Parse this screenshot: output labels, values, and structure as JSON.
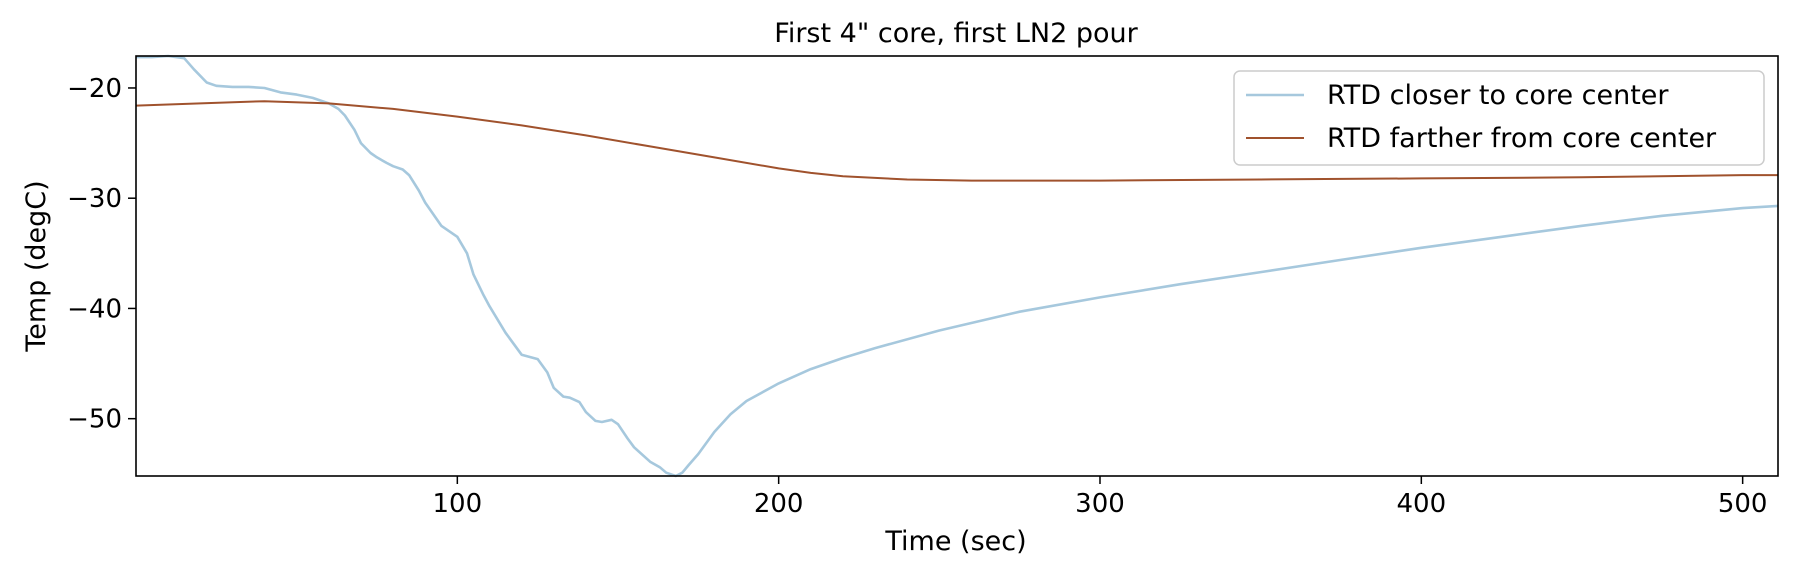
{
  "chart_data": {
    "type": "line",
    "title": "First 4\" core, first LN2 pour",
    "xlabel": "Time (sec)",
    "ylabel": "Temp (degC)",
    "xlim": [
      0,
      511
    ],
    "ylim": [
      -55.2,
      -17.1
    ],
    "xticks": [
      100,
      200,
      300,
      400,
      500
    ],
    "yticks": [
      -20,
      -30,
      -40,
      -50
    ],
    "ytick_labels": [
      "−20",
      "−30",
      "−40",
      "−50"
    ],
    "grid": false,
    "legend_position": "top-right",
    "series": [
      {
        "name": "RTD closer to core center",
        "color": "#a6c8dd",
        "x": [
          0,
          5,
          10,
          15,
          18,
          22,
          25,
          30,
          35,
          40,
          45,
          50,
          55,
          60,
          63,
          65,
          68,
          70,
          73,
          75,
          78,
          80,
          83,
          85,
          88,
          90,
          95,
          100,
          103,
          105,
          108,
          110,
          115,
          120,
          125,
          128,
          130,
          133,
          135,
          138,
          140,
          143,
          145,
          148,
          150,
          153,
          155,
          160,
          163,
          165,
          168,
          170,
          172,
          175,
          180,
          185,
          190,
          200,
          210,
          220,
          230,
          250,
          275,
          300,
          325,
          350,
          375,
          400,
          425,
          450,
          475,
          500,
          511
        ],
        "y": [
          -17.2,
          -17.2,
          -17.1,
          -17.3,
          -18.3,
          -19.5,
          -19.8,
          -19.9,
          -19.9,
          -20.0,
          -20.4,
          -20.6,
          -20.9,
          -21.4,
          -21.9,
          -22.5,
          -23.8,
          -25.0,
          -25.9,
          -26.3,
          -26.8,
          -27.1,
          -27.4,
          -27.9,
          -29.3,
          -30.4,
          -32.5,
          -33.5,
          -35.0,
          -36.9,
          -38.7,
          -39.8,
          -42.2,
          -44.2,
          -44.6,
          -45.8,
          -47.2,
          -48.0,
          -48.1,
          -48.5,
          -49.4,
          -50.2,
          -50.3,
          -50.1,
          -50.5,
          -51.8,
          -52.6,
          -53.9,
          -54.4,
          -54.9,
          -55.2,
          -54.9,
          -54.2,
          -53.2,
          -51.2,
          -49.6,
          -48.4,
          -46.8,
          -45.5,
          -44.5,
          -43.6,
          -42.0,
          -40.3,
          -39.0,
          -37.8,
          -36.7,
          -35.6,
          -34.5,
          -33.5,
          -32.5,
          -31.6,
          -30.9,
          -30.7
        ]
      },
      {
        "name": "RTD farther from core center",
        "color": "#a0522d",
        "x": [
          0,
          20,
          40,
          60,
          80,
          100,
          120,
          140,
          160,
          180,
          200,
          210,
          220,
          240,
          260,
          280,
          300,
          350,
          400,
          450,
          500,
          511
        ],
        "y": [
          -21.6,
          -21.4,
          -21.2,
          -21.4,
          -21.9,
          -22.6,
          -23.4,
          -24.3,
          -25.3,
          -26.3,
          -27.3,
          -27.7,
          -28.0,
          -28.3,
          -28.4,
          -28.4,
          -28.4,
          -28.3,
          -28.2,
          -28.1,
          -27.9,
          -27.9
        ]
      }
    ]
  }
}
